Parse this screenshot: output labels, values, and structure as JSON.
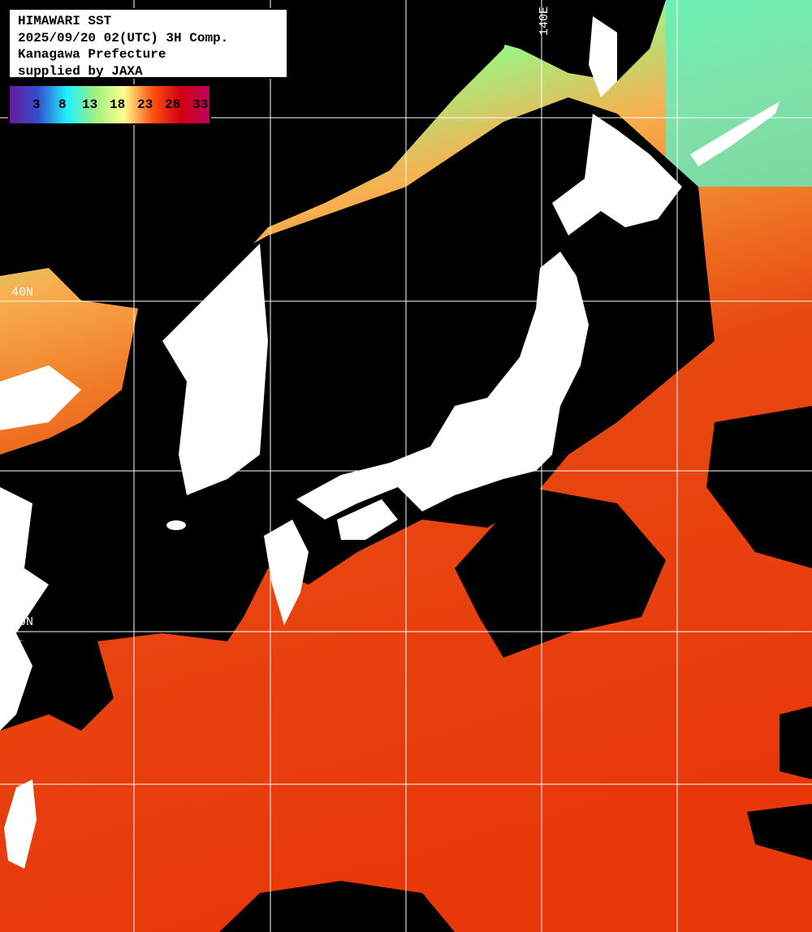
{
  "title": "HIMAWARI SST",
  "datetime": "2025/09/20 02(UTC) 3H Comp.",
  "region": "Kanagawa Prefecture",
  "credit": "supplied by JAXA",
  "legend": {
    "ticks": [
      "3",
      "8",
      "13",
      "18",
      "23",
      "28",
      "33"
    ],
    "colors": [
      "#6a1a9a",
      "#3050d0",
      "#20f0ff",
      "#a0f080",
      "#ffff90",
      "#ff5010",
      "#d00010",
      "#c00060"
    ]
  },
  "grid_labels": {
    "lat": [
      "40N",
      "30N"
    ],
    "lon": [
      "140E"
    ]
  },
  "colors": {
    "land": "#ffffff",
    "cloud": "#000000",
    "warm_sea": "#e83a0c",
    "mid_sea": "#f08a30",
    "cool_sea": "#80f090",
    "grid": "#ffffff"
  }
}
